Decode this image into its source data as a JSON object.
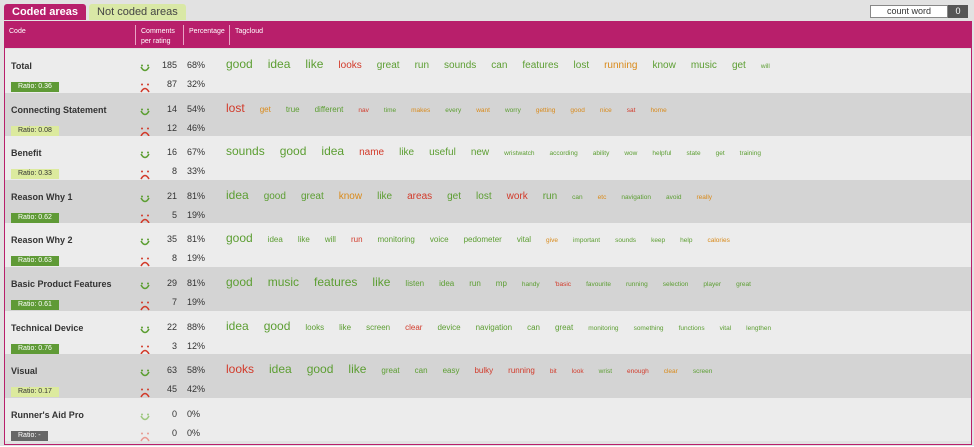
{
  "tabs": [
    {
      "label": "Coded areas",
      "active": true
    },
    {
      "label": "Not coded areas",
      "active": false
    }
  ],
  "count_word": {
    "label": "count word",
    "value": "0"
  },
  "header": {
    "code": "Code",
    "comments_line1": "Comments",
    "comments_line2": "per rating",
    "percentage": "Percentage",
    "tagcloud": "Tagcloud"
  },
  "colors": {
    "accent": "#b81f6b",
    "positive": "#5c9e32",
    "negative": "#d23a2a",
    "neutral": "#d98a1a"
  },
  "icons": {
    "positive": "smiley-icon",
    "negative": "sad-face-icon"
  },
  "rows": [
    {
      "code": "Total",
      "ratio": "Ratio: 0.36",
      "ratio_bg": "#5f9a36",
      "ratio_fg": "#ffffff",
      "pos_count": "185",
      "pos_pct": "68%",
      "neg_count": "87",
      "neg_pct": "32%",
      "words": [
        {
          "t": "good",
          "s": 1,
          "c": "p"
        },
        {
          "t": "idea",
          "s": 1,
          "c": "p"
        },
        {
          "t": "like",
          "s": 1,
          "c": "p"
        },
        {
          "t": "looks",
          "s": 2,
          "c": "n"
        },
        {
          "t": "great",
          "s": 2,
          "c": "p"
        },
        {
          "t": "run",
          "s": 2,
          "c": "p"
        },
        {
          "t": "sounds",
          "s": 2,
          "c": "p"
        },
        {
          "t": "can",
          "s": 2,
          "c": "p"
        },
        {
          "t": "features",
          "s": 2,
          "c": "p"
        },
        {
          "t": "lost",
          "s": 2,
          "c": "p"
        },
        {
          "t": "running",
          "s": 2,
          "c": "o"
        },
        {
          "t": "know",
          "s": 2,
          "c": "p"
        },
        {
          "t": "music",
          "s": 2,
          "c": "p"
        },
        {
          "t": "get",
          "s": 2,
          "c": "p"
        },
        {
          "t": "will",
          "s": 4,
          "c": "p"
        }
      ]
    },
    {
      "code": "Connecting Statement",
      "ratio": "Ratio: 0.08",
      "ratio_bg": "#dcea9e",
      "ratio_fg": "#333333",
      "pos_count": "14",
      "pos_pct": "54%",
      "neg_count": "12",
      "neg_pct": "46%",
      "words": [
        {
          "t": "lost",
          "s": 1,
          "c": "n"
        },
        {
          "t": "get",
          "s": 3,
          "c": "o"
        },
        {
          "t": "true",
          "s": 3,
          "c": "p"
        },
        {
          "t": "different",
          "s": 3,
          "c": "p"
        },
        {
          "t": "nav",
          "s": 4,
          "c": "n"
        },
        {
          "t": "time",
          "s": 4,
          "c": "p"
        },
        {
          "t": "makes",
          "s": 4,
          "c": "o"
        },
        {
          "t": "every",
          "s": 4,
          "c": "p"
        },
        {
          "t": "want",
          "s": 4,
          "c": "o"
        },
        {
          "t": "worry",
          "s": 4,
          "c": "p"
        },
        {
          "t": "getting",
          "s": 4,
          "c": "o"
        },
        {
          "t": "good",
          "s": 4,
          "c": "o"
        },
        {
          "t": "nice",
          "s": 4,
          "c": "o"
        },
        {
          "t": "sat",
          "s": 4,
          "c": "n"
        },
        {
          "t": "home",
          "s": 4,
          "c": "o"
        }
      ]
    },
    {
      "code": "Benefit",
      "ratio": "Ratio: 0.33",
      "ratio_bg": "#dcea9e",
      "ratio_fg": "#333333",
      "pos_count": "16",
      "pos_pct": "67%",
      "neg_count": "8",
      "neg_pct": "33%",
      "words": [
        {
          "t": "sounds",
          "s": 1,
          "c": "p"
        },
        {
          "t": "good",
          "s": 1,
          "c": "p"
        },
        {
          "t": "idea",
          "s": 1,
          "c": "p"
        },
        {
          "t": "name",
          "s": 2,
          "c": "n"
        },
        {
          "t": "like",
          "s": 2,
          "c": "p"
        },
        {
          "t": "useful",
          "s": 2,
          "c": "p"
        },
        {
          "t": "new",
          "s": 2,
          "c": "p"
        },
        {
          "t": "wristwatch",
          "s": 4,
          "c": "p"
        },
        {
          "t": "according",
          "s": 4,
          "c": "p"
        },
        {
          "t": "ability",
          "s": 4,
          "c": "p"
        },
        {
          "t": "wow",
          "s": 4,
          "c": "p"
        },
        {
          "t": "helpful",
          "s": 4,
          "c": "p"
        },
        {
          "t": "state",
          "s": 4,
          "c": "p"
        },
        {
          "t": "get",
          "s": 4,
          "c": "p"
        },
        {
          "t": "training",
          "s": 4,
          "c": "p"
        }
      ]
    },
    {
      "code": "Reason Why 1",
      "ratio": "Ratio: 0.62",
      "ratio_bg": "#5f9a36",
      "ratio_fg": "#ffffff",
      "pos_count": "21",
      "pos_pct": "81%",
      "neg_count": "5",
      "neg_pct": "19%",
      "words": [
        {
          "t": "idea",
          "s": 1,
          "c": "p"
        },
        {
          "t": "good",
          "s": 2,
          "c": "p"
        },
        {
          "t": "great",
          "s": 2,
          "c": "p"
        },
        {
          "t": "know",
          "s": 2,
          "c": "o"
        },
        {
          "t": "like",
          "s": 2,
          "c": "p"
        },
        {
          "t": "areas",
          "s": 2,
          "c": "n"
        },
        {
          "t": "get",
          "s": 2,
          "c": "p"
        },
        {
          "t": "lost",
          "s": 2,
          "c": "p"
        },
        {
          "t": "work",
          "s": 2,
          "c": "n"
        },
        {
          "t": "run",
          "s": 2,
          "c": "p"
        },
        {
          "t": "can",
          "s": 4,
          "c": "p"
        },
        {
          "t": "etc",
          "s": 4,
          "c": "o"
        },
        {
          "t": "navigation",
          "s": 4,
          "c": "p"
        },
        {
          "t": "avoid",
          "s": 4,
          "c": "p"
        },
        {
          "t": "really",
          "s": 4,
          "c": "o"
        }
      ]
    },
    {
      "code": "Reason Why 2",
      "ratio": "Ratio: 0.63",
      "ratio_bg": "#5f9a36",
      "ratio_fg": "#ffffff",
      "pos_count": "35",
      "pos_pct": "81%",
      "neg_count": "8",
      "neg_pct": "19%",
      "words": [
        {
          "t": "good",
          "s": 1,
          "c": "p"
        },
        {
          "t": "idea",
          "s": 3,
          "c": "p"
        },
        {
          "t": "like",
          "s": 3,
          "c": "p"
        },
        {
          "t": "will",
          "s": 3,
          "c": "p"
        },
        {
          "t": "run",
          "s": 3,
          "c": "n"
        },
        {
          "t": "monitoring",
          "s": 3,
          "c": "p"
        },
        {
          "t": "voice",
          "s": 3,
          "c": "p"
        },
        {
          "t": "pedometer",
          "s": 3,
          "c": "p"
        },
        {
          "t": "vital",
          "s": 3,
          "c": "p"
        },
        {
          "t": "give",
          "s": 4,
          "c": "o"
        },
        {
          "t": "important",
          "s": 4,
          "c": "p"
        },
        {
          "t": "sounds",
          "s": 4,
          "c": "p"
        },
        {
          "t": "keep",
          "s": 4,
          "c": "p"
        },
        {
          "t": "help",
          "s": 4,
          "c": "p"
        },
        {
          "t": "calories",
          "s": 4,
          "c": "o"
        }
      ]
    },
    {
      "code": "Basic Product Features",
      "ratio": "Ratio: 0.61",
      "ratio_bg": "#5f9a36",
      "ratio_fg": "#ffffff",
      "pos_count": "29",
      "pos_pct": "81%",
      "neg_count": "7",
      "neg_pct": "19%",
      "words": [
        {
          "t": "good",
          "s": 1,
          "c": "p"
        },
        {
          "t": "music",
          "s": 1,
          "c": "p"
        },
        {
          "t": "features",
          "s": 1,
          "c": "p"
        },
        {
          "t": "like",
          "s": 1,
          "c": "p"
        },
        {
          "t": "listen",
          "s": 3,
          "c": "p"
        },
        {
          "t": "idea",
          "s": 3,
          "c": "p"
        },
        {
          "t": "run",
          "s": 3,
          "c": "p"
        },
        {
          "t": "mp",
          "s": 3,
          "c": "p"
        },
        {
          "t": "handy",
          "s": 4,
          "c": "p"
        },
        {
          "t": "'basic",
          "s": 4,
          "c": "n"
        },
        {
          "t": "favourite",
          "s": 4,
          "c": "p"
        },
        {
          "t": "running",
          "s": 4,
          "c": "p"
        },
        {
          "t": "selection",
          "s": 4,
          "c": "p"
        },
        {
          "t": "player",
          "s": 4,
          "c": "p"
        },
        {
          "t": "great",
          "s": 4,
          "c": "p"
        }
      ]
    },
    {
      "code": "Technical Device",
      "ratio": "Ratio: 0.76",
      "ratio_bg": "#5f9a36",
      "ratio_fg": "#ffffff",
      "pos_count": "22",
      "pos_pct": "88%",
      "neg_count": "3",
      "neg_pct": "12%",
      "words": [
        {
          "t": "idea",
          "s": 1,
          "c": "p"
        },
        {
          "t": "good",
          "s": 1,
          "c": "p"
        },
        {
          "t": "looks",
          "s": 3,
          "c": "p"
        },
        {
          "t": "like",
          "s": 3,
          "c": "p"
        },
        {
          "t": "screen",
          "s": 3,
          "c": "p"
        },
        {
          "t": "clear",
          "s": 3,
          "c": "n"
        },
        {
          "t": "device",
          "s": 3,
          "c": "p"
        },
        {
          "t": "navigation",
          "s": 3,
          "c": "p"
        },
        {
          "t": "can",
          "s": 3,
          "c": "p"
        },
        {
          "t": "great",
          "s": 3,
          "c": "p"
        },
        {
          "t": "monitoring",
          "s": 4,
          "c": "p"
        },
        {
          "t": "something",
          "s": 4,
          "c": "p"
        },
        {
          "t": "functions",
          "s": 4,
          "c": "p"
        },
        {
          "t": "vital",
          "s": 4,
          "c": "p"
        },
        {
          "t": "lengthen",
          "s": 4,
          "c": "p"
        }
      ]
    },
    {
      "code": "Visual",
      "ratio": "Ratio: 0.17",
      "ratio_bg": "#dcea9e",
      "ratio_fg": "#333333",
      "pos_count": "63",
      "pos_pct": "58%",
      "neg_count": "45",
      "neg_pct": "42%",
      "words": [
        {
          "t": "looks",
          "s": 1,
          "c": "n"
        },
        {
          "t": "idea",
          "s": 1,
          "c": "p"
        },
        {
          "t": "good",
          "s": 1,
          "c": "p"
        },
        {
          "t": "like",
          "s": 1,
          "c": "p"
        },
        {
          "t": "great",
          "s": 3,
          "c": "p"
        },
        {
          "t": "can",
          "s": 3,
          "c": "p"
        },
        {
          "t": "easy",
          "s": 3,
          "c": "p"
        },
        {
          "t": "bulky",
          "s": 3,
          "c": "n"
        },
        {
          "t": "running",
          "s": 3,
          "c": "n"
        },
        {
          "t": "bit",
          "s": 4,
          "c": "n"
        },
        {
          "t": "look",
          "s": 4,
          "c": "n"
        },
        {
          "t": "wrist",
          "s": 4,
          "c": "p"
        },
        {
          "t": "enough",
          "s": 4,
          "c": "n"
        },
        {
          "t": "clear",
          "s": 4,
          "c": "o"
        },
        {
          "t": "screen",
          "s": 4,
          "c": "p"
        }
      ]
    },
    {
      "code": "Runner's Aid Pro",
      "ratio": "Ratio: -",
      "ratio_bg": "#666666",
      "ratio_fg": "#ffffff",
      "pos_count": "0",
      "pos_pct": "0%",
      "neg_count": "0",
      "neg_pct": "0%",
      "muted": true,
      "words": []
    }
  ]
}
